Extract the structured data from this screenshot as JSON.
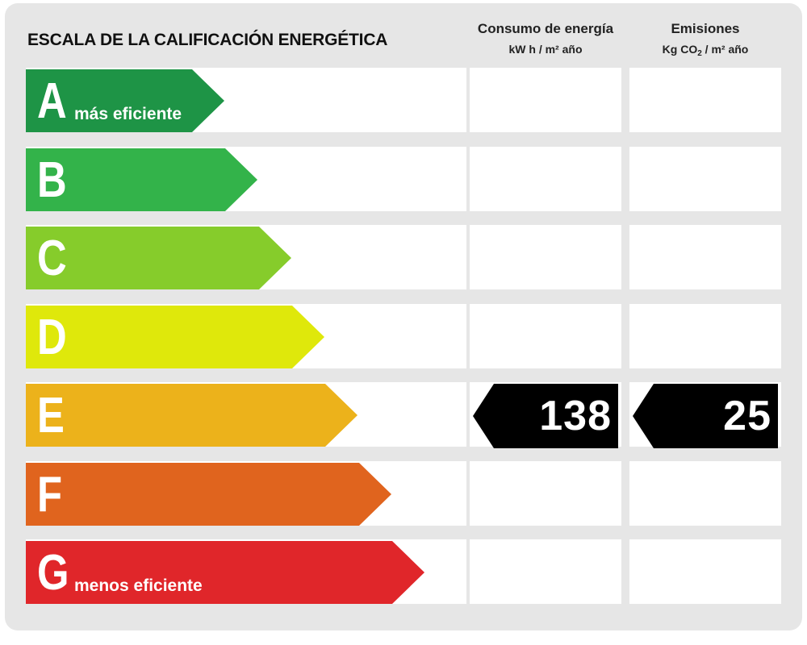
{
  "title": "ESCALA DE LA CALIFICACIÓN ENERGÉTICA",
  "columns": {
    "energy": {
      "label": "Consumo de energía",
      "unit": "kW h / m² año"
    },
    "emissions": {
      "label": "Emisiones",
      "unit_left": "Kg CO",
      "unit_sub": "2",
      "unit_right": " / m² año"
    }
  },
  "chart_data": {
    "type": "bar",
    "title": "ESCALA DE LA CALIFICACIÓN ENERGÉTICA",
    "categories": [
      "A",
      "B",
      "C",
      "D",
      "E",
      "F",
      "G"
    ],
    "band_labels": [
      "más eficiente",
      "",
      "",
      "",
      "",
      "",
      "menos eficiente"
    ],
    "band_colors": [
      "#1e9446",
      "#33b34a",
      "#86cc2b",
      "#dfe80b",
      "#ecb21b",
      "#e0641e",
      "#e0262a"
    ],
    "rating": "E",
    "series": [
      {
        "name": "Consumo de energía",
        "unit": "kW h / m² año",
        "values": [
          null,
          null,
          null,
          null,
          138,
          null,
          null
        ]
      },
      {
        "name": "Emisiones",
        "unit": "Kg CO2 / m² año",
        "values": [
          null,
          null,
          null,
          null,
          25,
          null,
          null
        ]
      }
    ]
  }
}
